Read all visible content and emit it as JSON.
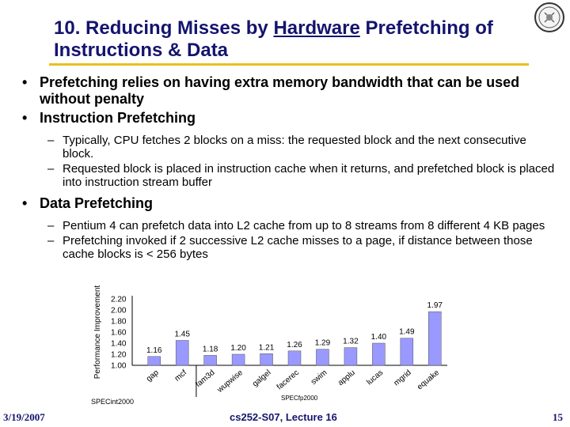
{
  "slide": {
    "title_pre": "10. Reducing Misses by ",
    "title_underlined": "Hardware",
    "title_post": " Prefetching of Instructions & Data",
    "bullets": [
      "Prefetching relies on having extra memory bandwidth that can be used without penalty",
      "Instruction Prefetching",
      "Data Prefetching"
    ],
    "sub_instruction": [
      "Typically, CPU fetches 2 blocks on a miss: the requested block and the next consecutive block.",
      "Requested block is placed in instruction cache when it returns, and prefetched block is placed into instruction stream buffer"
    ],
    "sub_data": [
      "Pentium 4 can prefetch data into L2 cache from up to 8 streams from 8 different 4 KB pages",
      "Prefetching invoked if 2 successive L2 cache misses to a page, if distance between those cache blocks is < 256 bytes"
    ]
  },
  "footer": {
    "date": "3/19/2007",
    "course": "cs252-S07, Lecture 16",
    "page": "15"
  },
  "colors": {
    "title": "#14146e",
    "rule": "#e8c020",
    "bar": "#9999ff"
  },
  "chart_data": {
    "type": "bar",
    "categories": [
      "gap",
      "mcf",
      "fam3d",
      "wupwise",
      "galgel",
      "facerec",
      "swim",
      "applu",
      "lucas",
      "mgrid",
      "equake"
    ],
    "values": [
      1.16,
      1.45,
      1.18,
      1.2,
      1.21,
      1.26,
      1.29,
      1.32,
      1.4,
      1.49,
      1.97
    ],
    "value_labels": [
      "1.16",
      "1.45",
      "1.18",
      "1.20",
      "1.21",
      "1.26",
      "1.29",
      "1.32",
      "1.40",
      "1.49",
      "1.97"
    ],
    "ylabel": "Performance Improvement",
    "ylim": [
      1.0,
      2.2
    ],
    "yticks": [
      "2.20",
      "2.00",
      "1.80",
      "1.60",
      "1.40",
      "1.20",
      "1.00"
    ],
    "groups": [
      "SPECint2000",
      "SPECfp2000"
    ],
    "grid": false
  }
}
